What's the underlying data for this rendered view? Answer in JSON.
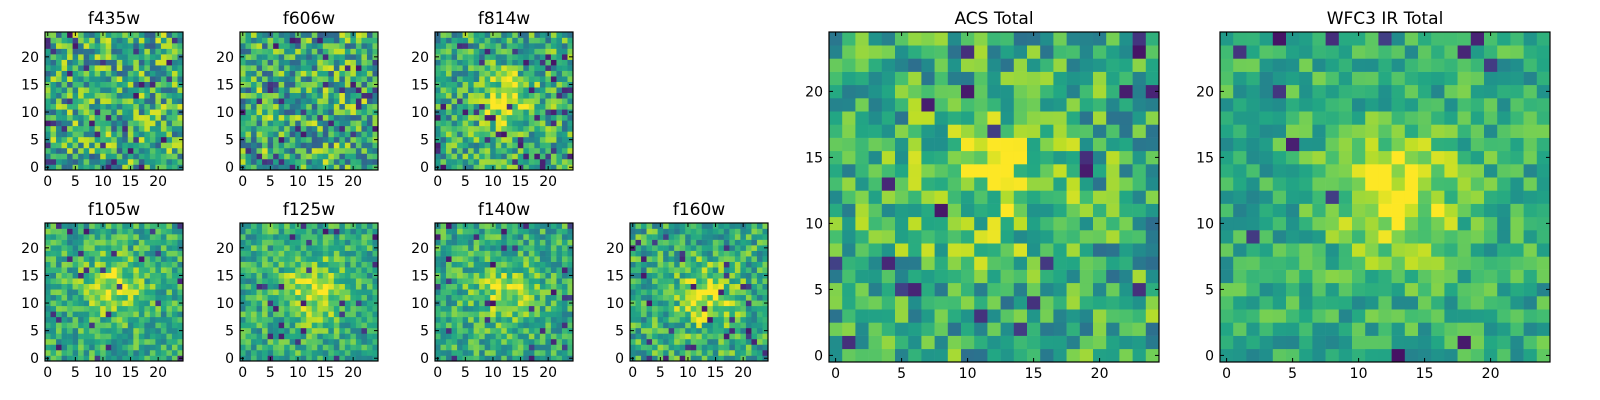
{
  "chart_data": [
    {
      "type": "heatmap",
      "title": "f435w",
      "xticks": [
        "0",
        "5",
        "10",
        "15",
        "20"
      ],
      "yticks": [
        "0",
        "5",
        "10",
        "15",
        "20"
      ],
      "xlim": [
        -0.5,
        24.5
      ],
      "ylim": [
        -0.5,
        24.5
      ],
      "grid": false,
      "colormap": "viridis"
    },
    {
      "type": "heatmap",
      "title": "f606w",
      "xticks": [
        "0",
        "5",
        "10",
        "15",
        "20"
      ],
      "yticks": [
        "0",
        "5",
        "10",
        "15",
        "20"
      ],
      "xlim": [
        -0.5,
        24.5
      ],
      "ylim": [
        -0.5,
        24.5
      ],
      "grid": false,
      "colormap": "viridis"
    },
    {
      "type": "heatmap",
      "title": "f814w",
      "xticks": [
        "0",
        "5",
        "10",
        "15",
        "20"
      ],
      "yticks": [
        "0",
        "5",
        "10",
        "15",
        "20"
      ],
      "xlim": [
        -0.5,
        24.5
      ],
      "ylim": [
        -0.5,
        24.5
      ],
      "grid": false,
      "colormap": "viridis"
    },
    {
      "type": "heatmap",
      "title": "f105w",
      "xticks": [
        "0",
        "5",
        "10",
        "15",
        "20"
      ],
      "yticks": [
        "0",
        "5",
        "10",
        "15",
        "20"
      ],
      "xlim": [
        -0.5,
        24.5
      ],
      "ylim": [
        -0.5,
        24.5
      ],
      "grid": false,
      "colormap": "viridis"
    },
    {
      "type": "heatmap",
      "title": "f125w",
      "xticks": [
        "0",
        "5",
        "10",
        "15",
        "20"
      ],
      "yticks": [
        "0",
        "5",
        "10",
        "15",
        "20"
      ],
      "xlim": [
        -0.5,
        24.5
      ],
      "ylim": [
        -0.5,
        24.5
      ],
      "grid": false,
      "colormap": "viridis"
    },
    {
      "type": "heatmap",
      "title": "f140w",
      "xticks": [
        "0",
        "5",
        "10",
        "15",
        "20"
      ],
      "yticks": [
        "0",
        "5",
        "10",
        "15",
        "20"
      ],
      "xlim": [
        -0.5,
        24.5
      ],
      "ylim": [
        -0.5,
        24.5
      ],
      "grid": false,
      "colormap": "viridis"
    },
    {
      "type": "heatmap",
      "title": "f160w",
      "xticks": [
        "0",
        "5",
        "10",
        "15",
        "20"
      ],
      "yticks": [
        "0",
        "5",
        "10",
        "15",
        "20"
      ],
      "xlim": [
        -0.5,
        24.5
      ],
      "ylim": [
        -0.5,
        24.5
      ],
      "grid": false,
      "colormap": "viridis"
    },
    {
      "type": "heatmap",
      "title": "ACS Total",
      "xticks": [
        "0",
        "5",
        "10",
        "15",
        "20"
      ],
      "yticks": [
        "0",
        "5",
        "10",
        "15",
        "20"
      ],
      "xlim": [
        -0.5,
        24.5
      ],
      "ylim": [
        -0.5,
        24.5
      ],
      "grid": false,
      "colormap": "viridis"
    },
    {
      "type": "heatmap",
      "title": "WFC3 IR Total",
      "xticks": [
        "0",
        "5",
        "10",
        "15",
        "20"
      ],
      "yticks": [
        "0",
        "5",
        "10",
        "15",
        "20"
      ],
      "xlim": [
        -0.5,
        24.5
      ],
      "ylim": [
        -0.5,
        24.5
      ],
      "grid": false,
      "colormap": "viridis"
    }
  ]
}
